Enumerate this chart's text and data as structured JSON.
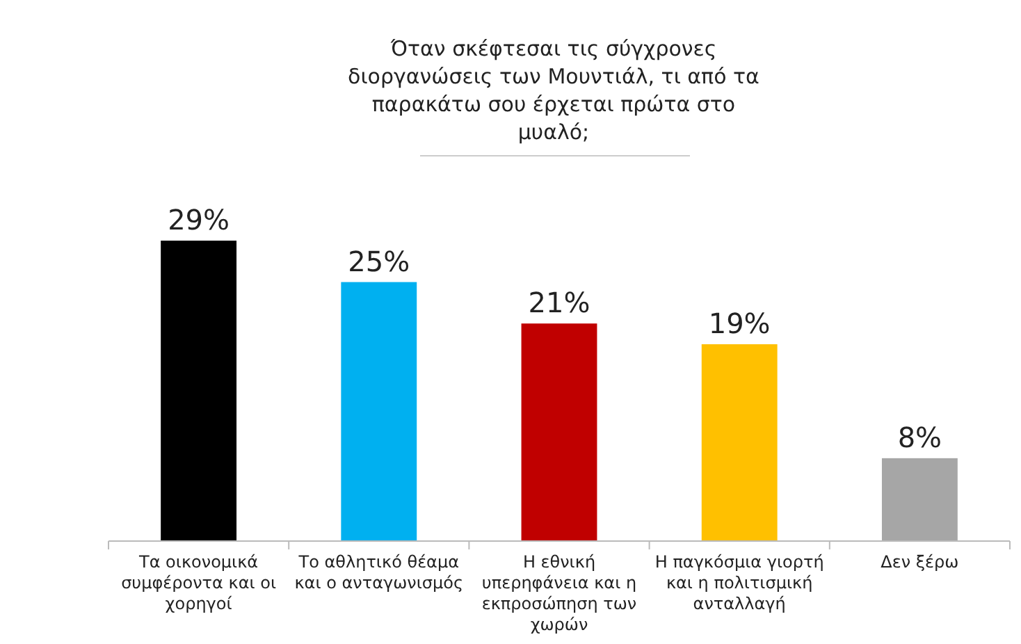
{
  "chart_data": {
    "type": "bar",
    "title": "Όταν σκέφτεσαι τις σύγχρονες διοργανώσεις των Μουντιάλ, τι από τα παρακάτω σου έρχεται πρώτα στο μυαλό;",
    "categories": [
      "Τα οικονομικά συμφέροντα και οι χορηγοί",
      "Το αθλητικό θέαμα και ο ανταγωνισμός",
      "Η εθνική υπερηφάνεια και η εκπροσώπηση των χωρών",
      "Η παγκόσμια γιορτή και η πολιτισμική ανταλλαγή",
      "Δεν ξέρω"
    ],
    "values": [
      29,
      25,
      21,
      19,
      8
    ],
    "value_labels": [
      "29%",
      "25%",
      "21%",
      "19%",
      "8%"
    ],
    "colors": [
      "#000000",
      "#00b0f0",
      "#c00000",
      "#ffc000",
      "#a6a6a6"
    ]
  }
}
